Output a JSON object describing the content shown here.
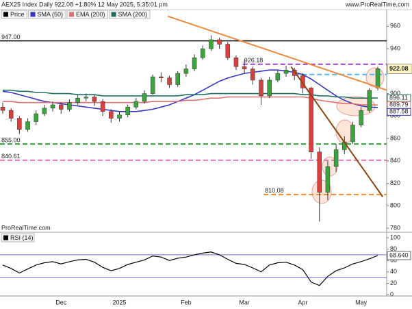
{
  "chart_data": [
    {
      "type": "candlestick",
      "title": "AEX25 Index Daily 922.08 +1.80% 12 May 2025, 5:35:01 pm",
      "source": "www.ProRealTime.com",
      "footer": "ProRealTime.com",
      "categories": [
        null,
        null,
        null,
        null,
        null,
        null,
        null,
        "Dec",
        null,
        null,
        null,
        null,
        null,
        null,
        "2025",
        null,
        null,
        null,
        null,
        null,
        null,
        null,
        "Feb",
        null,
        null,
        null,
        null,
        null,
        null,
        "Mar",
        null,
        null,
        null,
        null,
        null,
        null,
        "Apr",
        null,
        null,
        null,
        null,
        null,
        null,
        "May",
        null,
        null
      ],
      "price_name": "Price",
      "price_color": "#000000",
      "up_color": "#3aa53a",
      "down_color": "#d84040",
      "open": [
        888,
        885,
        878,
        868,
        875,
        882,
        887,
        890,
        886,
        892,
        896,
        897,
        893,
        884,
        878,
        881,
        888,
        893,
        900,
        915,
        914,
        908,
        918,
        922,
        932,
        940,
        948,
        944,
        932,
        924,
        922,
        912,
        898,
        912,
        918,
        921,
        916,
        905,
        848,
        812,
        835,
        850,
        857,
        872,
        885,
        905
      ],
      "high": [
        892,
        887,
        880,
        878,
        885,
        890,
        893,
        892,
        895,
        899,
        900,
        899,
        895,
        886,
        884,
        890,
        896,
        903,
        917,
        919,
        916,
        920,
        926,
        935,
        943,
        952,
        950,
        946,
        934,
        930,
        924,
        914,
        915,
        921,
        925,
        923,
        918,
        906,
        852,
        840,
        855,
        862,
        875,
        888,
        905,
        924
      ],
      "low": [
        882,
        875,
        864,
        866,
        872,
        880,
        884,
        882,
        884,
        890,
        893,
        889,
        880,
        874,
        875,
        879,
        886,
        891,
        899,
        910,
        905,
        906,
        915,
        920,
        930,
        938,
        940,
        930,
        921,
        918,
        908,
        890,
        896,
        910,
        915,
        912,
        900,
        842,
        786,
        805,
        830,
        846,
        855,
        870,
        883,
        903
      ],
      "close": [
        885,
        878,
        868,
        875,
        882,
        887,
        890,
        886,
        892,
        896,
        897,
        893,
        884,
        878,
        881,
        888,
        893,
        900,
        915,
        914,
        908,
        918,
        922,
        932,
        940,
        948,
        944,
        932,
        924,
        922,
        912,
        898,
        912,
        918,
        921,
        916,
        905,
        848,
        812,
        835,
        850,
        857,
        872,
        885,
        903,
        922.08
      ],
      "series": [
        {
          "name": "SMA (50)",
          "color": "#3535c8",
          "values": [
            902,
            901,
            899,
            897,
            895,
            893,
            892,
            891,
            890,
            889,
            888,
            887,
            886,
            885,
            884,
            884,
            884,
            885,
            886,
            888,
            890,
            893,
            896,
            899,
            903,
            907,
            911,
            914,
            916,
            918,
            919,
            920,
            921,
            921,
            920,
            919,
            917,
            913,
            908,
            903,
            898,
            894,
            891,
            889,
            888,
            887.58
          ]
        },
        {
          "name": "EMA (200)",
          "color": "#e07070",
          "values": [
            893,
            893,
            892,
            892,
            892,
            892,
            892,
            892,
            892,
            892,
            892,
            892,
            892,
            892,
            892,
            892,
            892,
            892,
            893,
            893,
            893,
            893,
            894,
            894,
            895,
            896,
            896,
            897,
            897,
            897,
            897,
            897,
            897,
            897,
            897,
            897,
            897,
            896,
            894,
            893,
            892,
            891,
            891,
            890,
            890,
            889.79
          ]
        },
        {
          "name": "SMA (200)",
          "color": "#1f6f60",
          "values": [
            903,
            903,
            902,
            902,
            901,
            901,
            900,
            900,
            900,
            899,
            899,
            899,
            898,
            898,
            898,
            898,
            898,
            898,
            898,
            898,
            898,
            898,
            899,
            899,
            899,
            900,
            900,
            900,
            900,
            900,
            900,
            900,
            900,
            900,
            900,
            900,
            899,
            899,
            898,
            898,
            897,
            897,
            896,
            896,
            896,
            896.11
          ]
        }
      ],
      "levels": [
        {
          "value": 947,
          "label": "947.00",
          "color": "#000000",
          "dashed": false,
          "x0": null
        },
        {
          "value": 926.18,
          "label": "926.18",
          "color": "#a040d0",
          "dashed": true,
          "x0": 28.8
        },
        {
          "value": 917,
          "color": "#50b8f0",
          "dashed": true,
          "x0": 35
        },
        {
          "value": 855,
          "label": "855.00",
          "color": "#2aa02a",
          "dashed": true,
          "x0": null
        },
        {
          "value": 840.61,
          "label": "840.61",
          "color": "#f070b0",
          "dashed": true,
          "x0": null
        },
        {
          "value": 810.08,
          "label": "810.08",
          "color": "#f08a30",
          "dashed": true,
          "x0": 31.3
        }
      ],
      "trendlines": [
        {
          "color": "#f08a40",
          "x": [
            19.8,
            46.1
          ],
          "y": [
            969,
            903
          ]
        },
        {
          "color": "#8b4513",
          "x": [
            34.6,
            45.6
          ],
          "y": [
            924,
            808
          ]
        }
      ],
      "ylim": [
        777,
        970
      ],
      "yticks": [
        780,
        800,
        820,
        840,
        860,
        880,
        900,
        920,
        940,
        960
      ]
    },
    {
      "type": "line",
      "title": "RSI (14)",
      "color": "#000000",
      "values": [
        52,
        46,
        38,
        45,
        52,
        56,
        58,
        54,
        58,
        61,
        62,
        57,
        48,
        42,
        46,
        53,
        57,
        61,
        68,
        66,
        60,
        64,
        66,
        70,
        73,
        75,
        70,
        62,
        55,
        53,
        47,
        40,
        52,
        56,
        57,
        52,
        44,
        22,
        16,
        32,
        42,
        47,
        54,
        58,
        63,
        68.64
      ],
      "value_labels": [
        null,
        null,
        null,
        null,
        null,
        null,
        null,
        null,
        null,
        null,
        null,
        null,
        null,
        null,
        null,
        null,
        null,
        null,
        null,
        null,
        null,
        null,
        null,
        null,
        null,
        null,
        null,
        null,
        null,
        null,
        null,
        null,
        null,
        null,
        null,
        null,
        null,
        null,
        null,
        null,
        null,
        null,
        null,
        null,
        null,
        "68.640"
      ],
      "levels": [
        70,
        30
      ],
      "level_color": "#6a6ad0",
      "ylim": [
        0,
        100
      ],
      "yticks": [
        0,
        20,
        40,
        60,
        80,
        100
      ]
    }
  ]
}
